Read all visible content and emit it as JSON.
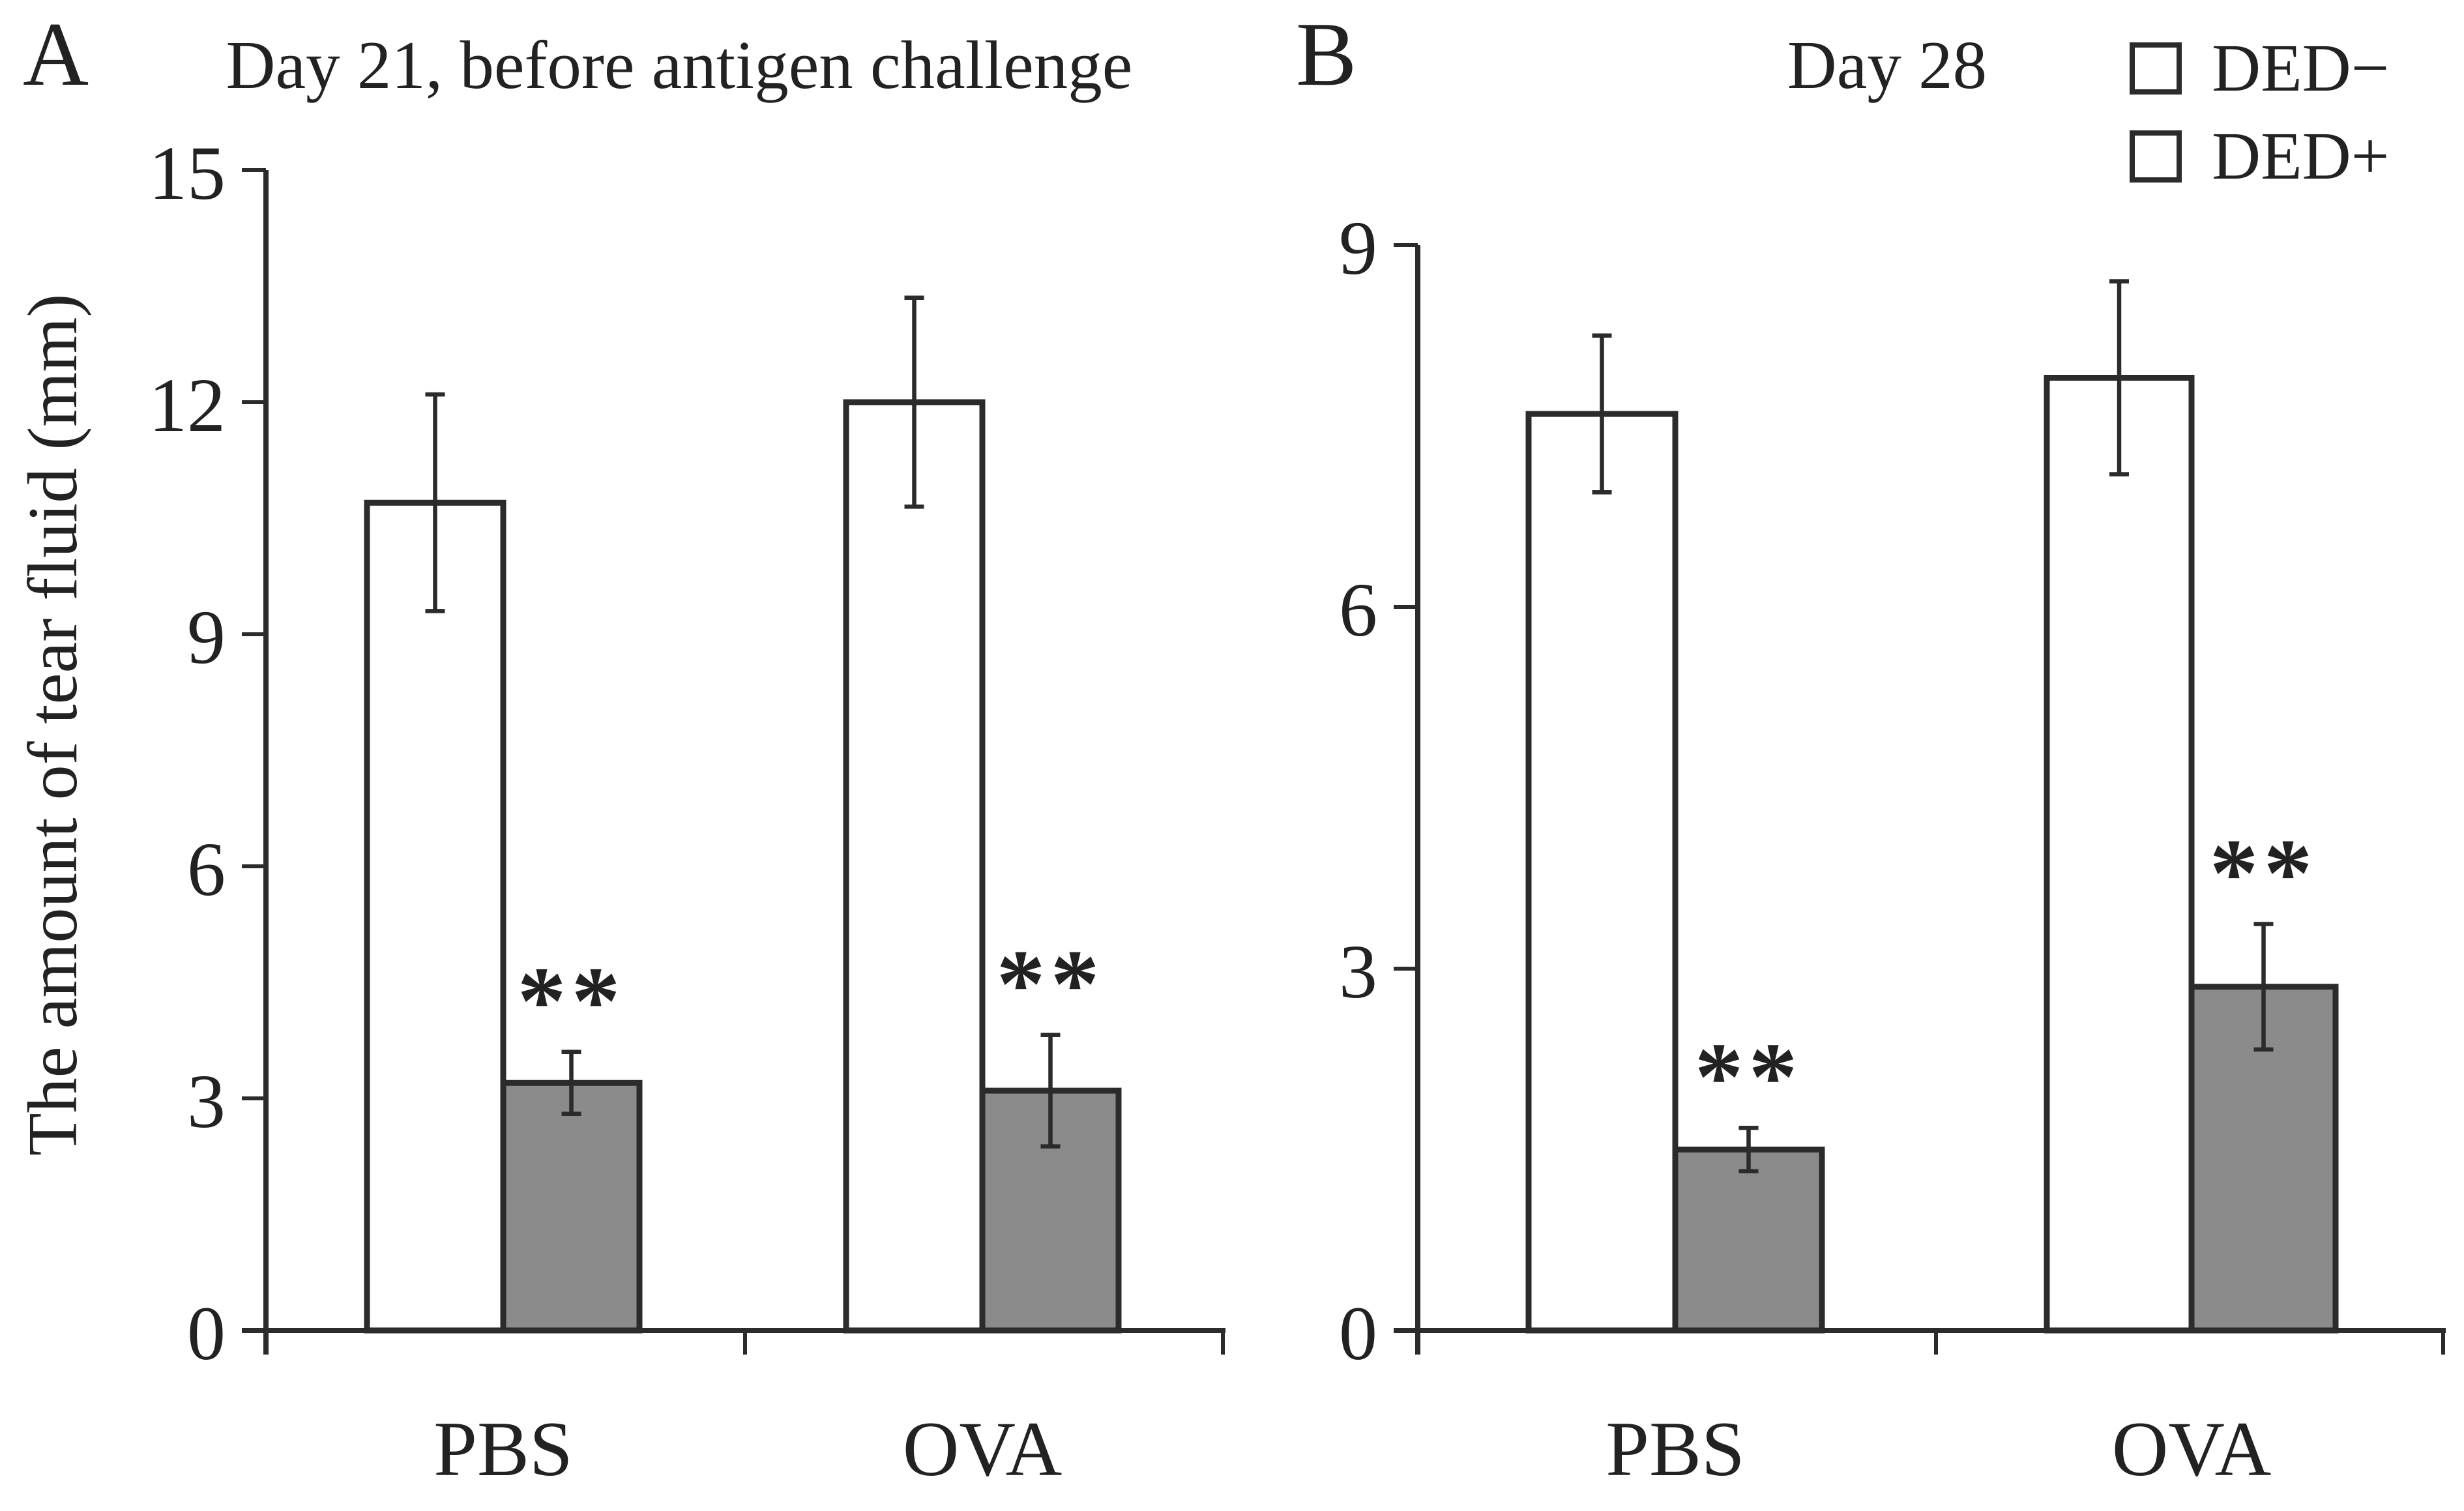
{
  "figure": {
    "y_axis_title": "The amount of tear fluid (mm)",
    "panels": [
      {
        "letter": "A",
        "title": "Day 21, before antigen challenge"
      },
      {
        "letter": "B",
        "title": "Day 28"
      }
    ],
    "legend": [
      {
        "label": "DED−",
        "swatch": "#ffffff"
      },
      {
        "label": "DED+",
        "swatch": "#8b8b8b"
      }
    ]
  },
  "colors": {
    "ded_negative_fill": "#ffffff",
    "ded_positive_fill": "#8b8b8b",
    "stroke": "#2b2b2b",
    "text": "#222222"
  },
  "chart_data": [
    {
      "panel": "A",
      "type": "bar",
      "title": "Day 21, before antigen challenge",
      "categories": [
        "PBS",
        "OVA"
      ],
      "series": [
        {
          "name": "DED−",
          "values": [
            10.7,
            12.0
          ],
          "errors": [
            1.4,
            1.35
          ],
          "significance": [
            "",
            ""
          ]
        },
        {
          "name": "DED+",
          "values": [
            3.2,
            3.1
          ],
          "errors": [
            0.4,
            0.72
          ],
          "significance": [
            "**",
            "**"
          ]
        }
      ],
      "ylabel": "The amount of tear fluid (mm)",
      "ylim": [
        0,
        15
      ],
      "yticks": [
        0,
        3,
        6,
        9,
        12,
        15
      ],
      "grid": false,
      "legend_position": "top-right"
    },
    {
      "panel": "B",
      "type": "bar",
      "title": "Day 28",
      "categories": [
        "PBS",
        "OVA"
      ],
      "series": [
        {
          "name": "DED−",
          "values": [
            7.6,
            7.9
          ],
          "errors": [
            0.65,
            0.8
          ],
          "significance": [
            "",
            ""
          ]
        },
        {
          "name": "DED+",
          "values": [
            1.5,
            2.85
          ],
          "errors": [
            0.18,
            0.52
          ],
          "significance": [
            "**",
            "**"
          ]
        }
      ],
      "ylabel": "The amount of tear fluid (mm)",
      "ylim": [
        0,
        9
      ],
      "yticks": [
        0,
        3,
        6,
        9
      ],
      "grid": false,
      "legend_position": "top-right"
    }
  ]
}
